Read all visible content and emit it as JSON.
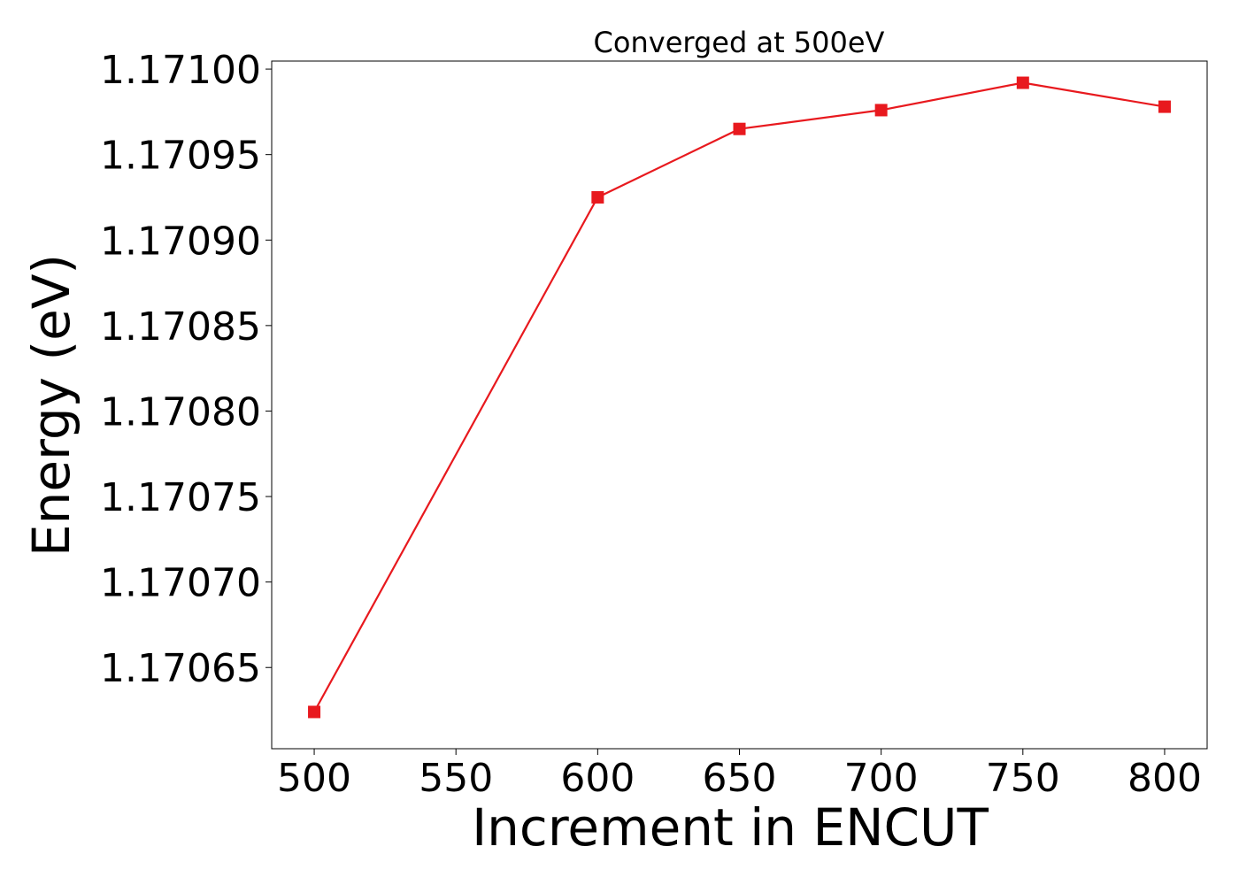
{
  "chart_data": {
    "type": "line",
    "title": "Converged at 500eV",
    "xlabel": "Increment in ENCUT",
    "ylabel": "Energy (eV)",
    "x": [
      500,
      600,
      650,
      700,
      750,
      800
    ],
    "series": [
      {
        "values": [
          1.170624,
          1.170925,
          1.170965,
          1.170976,
          1.170992,
          1.170978
        ],
        "color": "#e8191e",
        "marker": "square"
      }
    ],
    "xticks": [
      500,
      550,
      600,
      650,
      700,
      750,
      800
    ],
    "xtick_labels": [
      "500",
      "550",
      "600",
      "650",
      "700",
      "750",
      "800"
    ],
    "yticks": [
      1.17065,
      1.1707,
      1.17075,
      1.1708,
      1.17085,
      1.1709,
      1.17095,
      1.171
    ],
    "ytick_labels": [
      "1.17065",
      "1.17070",
      "1.17075",
      "1.17080",
      "1.17085",
      "1.17090",
      "1.17095",
      "1.17100"
    ],
    "xlim": [
      485,
      815
    ],
    "ylim": [
      1.1706025,
      1.1710047
    ],
    "grid": false,
    "legend": "none"
  }
}
